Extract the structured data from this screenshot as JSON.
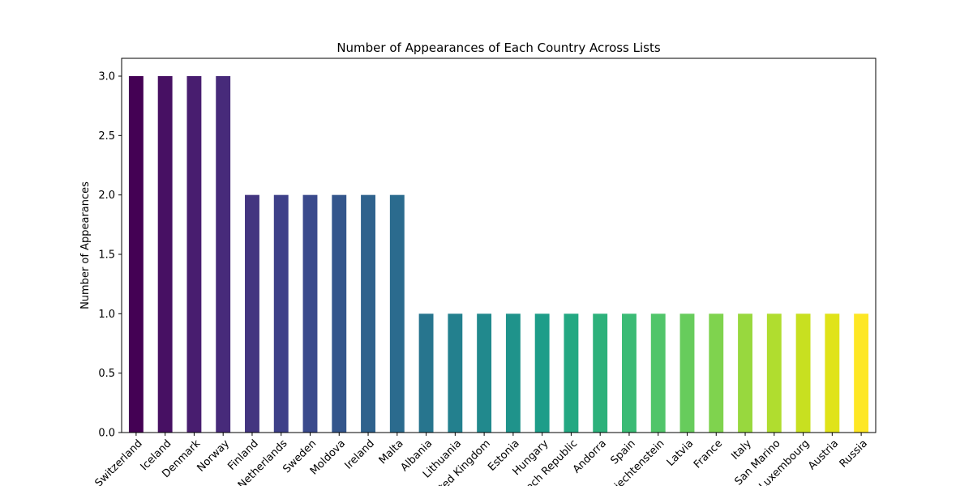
{
  "chart_data": {
    "type": "bar",
    "title": "Number of Appearances of Each Country Across Lists",
    "xlabel": "",
    "ylabel": "Number of Appearances",
    "ylim": [
      0,
      3.15
    ],
    "yticks": [
      "0.0",
      "0.5",
      "1.0",
      "1.5",
      "2.0",
      "2.5",
      "3.0"
    ],
    "ytick_values": [
      0,
      0.5,
      1.0,
      1.5,
      2.0,
      2.5,
      3.0
    ],
    "grid": false,
    "categories": [
      "Switzerland",
      "Iceland",
      "Denmark",
      "Norway",
      "Finland",
      "Netherlands",
      "Sweden",
      "Moldova",
      "Ireland",
      "Malta",
      "Albania",
      "Lithuania",
      "United Kingdom",
      "Estonia",
      "Hungary",
      "Czech Republic",
      "Andorra",
      "Spain",
      "Liechtenstein",
      "Latvia",
      "France",
      "Italy",
      "San Marino",
      "Luxembourg",
      "Austria",
      "Russia"
    ],
    "values": [
      3,
      3,
      3,
      3,
      2,
      2,
      2,
      2,
      2,
      2,
      1,
      1,
      1,
      1,
      1,
      1,
      1,
      1,
      1,
      1,
      1,
      1,
      1,
      1,
      1,
      1
    ],
    "colors": [
      "#440154",
      "#481a6c",
      "#472f7d",
      "#414487",
      "#39568c",
      "#31688e",
      "#2a788e",
      "#23888e",
      "#1f988b",
      "#22a884",
      "#35b779",
      "#54c568",
      "#7ad151",
      "#a5db36",
      "#d2e21b",
      "#fde725",
      "#2a788e",
      "#23888e",
      "#1f988b",
      "#22a884",
      "#35b779",
      "#54c568",
      "#7ad151",
      "#a5db36",
      "#d2e21b",
      "#fde725"
    ]
  }
}
